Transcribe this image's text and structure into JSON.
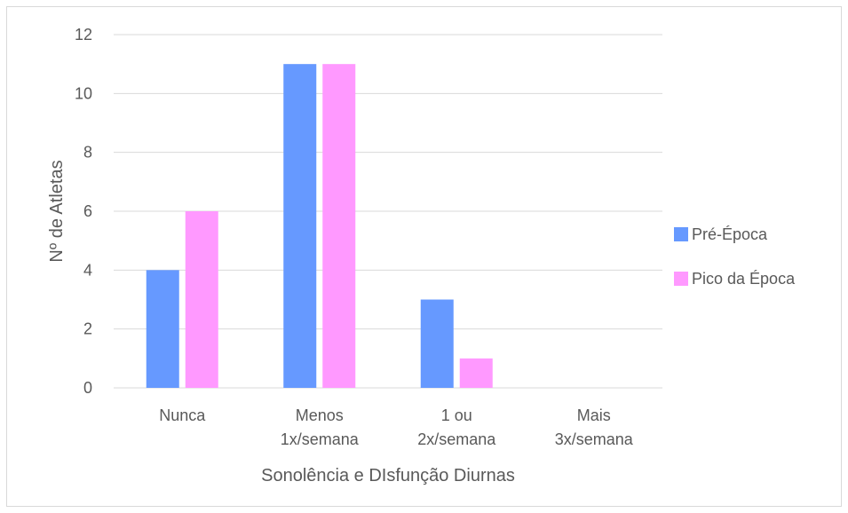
{
  "chart_data": {
    "type": "bar",
    "categories": [
      [
        "Nunca"
      ],
      [
        "Menos",
        "1x/semana"
      ],
      [
        "1 ou",
        "2x/semana"
      ],
      [
        "Mais",
        "3x/semana"
      ]
    ],
    "series": [
      {
        "name": "Pré-Época",
        "color": "#6699ff",
        "values": [
          4,
          11,
          3,
          0
        ]
      },
      {
        "name": "Pico da Época",
        "color": "#ff99ff",
        "values": [
          6,
          11,
          1,
          0
        ]
      }
    ],
    "yticks": [
      0,
      2,
      4,
      6,
      8,
      10,
      12
    ],
    "ylim": [
      0,
      12
    ],
    "xlabel": "Sonolência e DIsfunção Diurnas",
    "ylabel": "Nº de Atletas",
    "grid": true,
    "legend_position": "right"
  }
}
